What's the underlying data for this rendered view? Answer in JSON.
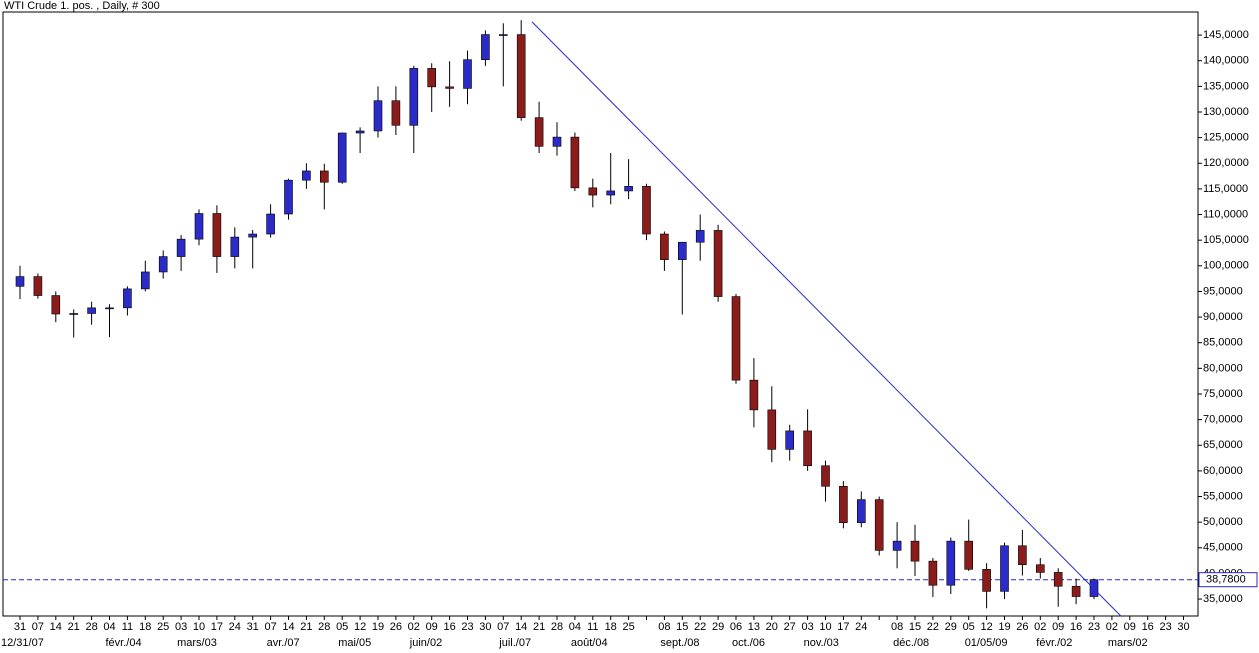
{
  "chart_data": {
    "type": "candlestick",
    "title": "WTI Crude 1. pos. , Daily, # 300",
    "categories": [
      "31",
      "07",
      "14",
      "21",
      "28",
      "04",
      "11",
      "18",
      "25",
      "03",
      "10",
      "17",
      "24",
      "31",
      "07",
      "14",
      "21",
      "28",
      "05",
      "12",
      "19",
      "26",
      "02",
      "09",
      "16",
      "23",
      "30",
      "07",
      "14",
      "21",
      "28",
      "04",
      "11",
      "18",
      "25",
      null,
      "08",
      "15",
      "22",
      "29",
      "06",
      "13",
      "20",
      "27",
      "03",
      "10",
      "17",
      "24",
      null,
      "08",
      "15",
      "22",
      "29",
      "05",
      "12",
      "19",
      "26",
      "02",
      "09",
      "16",
      "23",
      "02",
      "09",
      "16",
      "23",
      "30"
    ],
    "month_labels": [
      "12/31/07",
      null,
      null,
      null,
      null,
      "févr./04",
      null,
      null,
      null,
      "mars/03",
      null,
      null,
      null,
      null,
      "avr./07",
      null,
      null,
      null,
      "mai/05",
      null,
      null,
      null,
      "juin/02",
      null,
      null,
      null,
      null,
      "juil./07",
      null,
      null,
      null,
      "août/04",
      null,
      null,
      null,
      null,
      "sept./08",
      null,
      null,
      null,
      "oct./06",
      null,
      null,
      null,
      "nov./03",
      null,
      null,
      null,
      null,
      "déc./08",
      null,
      null,
      null,
      "01/05/09",
      null,
      null,
      null,
      "févr./02",
      null,
      null,
      null,
      "mars/02",
      null,
      null,
      null,
      null
    ],
    "open": [
      96,
      97.9,
      94.2,
      90.6,
      90.7,
      91.8,
      91.8,
      95.5,
      98.8,
      101.8,
      105.2,
      110.2,
      101.8,
      105.6,
      106.2,
      110.1,
      116.7,
      118.5,
      116.3,
      125.9,
      126.3,
      132.2,
      127.4,
      138.5,
      134.9,
      134.6,
      140.2,
      145.1,
      145.1,
      128.9,
      123.3,
      125.1,
      115.2,
      113.8,
      114.6,
      115.5,
      106.2,
      101.2,
      104.6,
      106.9,
      94,
      77.7,
      71.9,
      64.2,
      67.8,
      61,
      57,
      49.9,
      54.4,
      44.5,
      46.3,
      42.4,
      37.7,
      46.3,
      40.8,
      36.5,
      45.4,
      41.7,
      40.2,
      37.5,
      35.5,
      null,
      null,
      null,
      null,
      null
    ],
    "high": [
      100,
      98.5,
      95,
      91.5,
      93,
      92.5,
      96,
      101,
      103,
      106,
      111,
      111.8,
      107.5,
      107,
      112,
      117,
      120,
      119.9,
      126,
      127,
      135,
      135,
      139,
      139.5,
      139.9,
      142,
      145.9,
      147.3,
      147.9,
      132,
      128,
      126,
      117,
      122,
      120.8,
      116,
      106.7,
      104,
      110,
      108,
      94.5,
      82,
      76.5,
      69,
      72,
      62,
      58,
      56,
      55,
      50,
      49.5,
      43,
      47,
      50.5,
      42,
      46,
      48.5,
      43,
      41,
      39,
      39,
      null,
      null,
      null,
      null,
      null
    ],
    "low": [
      93.5,
      93.6,
      89,
      86,
      88.5,
      86.1,
      90.3,
      95,
      97.5,
      99,
      104,
      98.6,
      99.5,
      99.5,
      105.5,
      109,
      115,
      111,
      116,
      122,
      125,
      125.5,
      122,
      130,
      131,
      131.5,
      139,
      135,
      128.3,
      122,
      121.5,
      114.6,
      111.4,
      112,
      113,
      105,
      99,
      90.5,
      101,
      93,
      77,
      68.5,
      61.7,
      62,
      60,
      54,
      48.8,
      49,
      43.5,
      41,
      39.5,
      35.4,
      36,
      40.5,
      33.2,
      35,
      39.6,
      39,
      33.5,
      34,
      35,
      null,
      null,
      null,
      null,
      null
    ],
    "close": [
      97.9,
      94.2,
      90.6,
      90.7,
      91.8,
      91.8,
      95.5,
      98.8,
      101.8,
      105.2,
      110.2,
      101.8,
      105.6,
      106.2,
      110.1,
      116.7,
      118.5,
      116.3,
      125.9,
      126.3,
      132.2,
      127.4,
      138.5,
      134.9,
      134.6,
      140.2,
      145.1,
      145.1,
      128.9,
      123.3,
      125.1,
      115.2,
      113.8,
      114.6,
      115.5,
      106.2,
      101.2,
      104.6,
      106.9,
      94,
      77.7,
      71.9,
      64.2,
      67.8,
      61,
      57,
      49.9,
      54.4,
      44.5,
      46.3,
      42.4,
      37.7,
      46.3,
      40.8,
      36.5,
      45.4,
      41.7,
      40.2,
      37.5,
      35.5,
      38.78,
      null,
      null,
      null,
      null,
      null
    ],
    "up_color": "#2b2bc8",
    "down_color": "#8b1c1c",
    "ylim": [
      31.7,
      149.5
    ],
    "yticks": [
      {
        "value": 35,
        "label": "35,0000"
      },
      {
        "value": 40,
        "label": "40,0000"
      },
      {
        "value": 45,
        "label": "45,0000"
      },
      {
        "value": 50,
        "label": "50,0000"
      },
      {
        "value": 55,
        "label": "55,0000"
      },
      {
        "value": 60,
        "label": "60,0000"
      },
      {
        "value": 65,
        "label": "65,0000"
      },
      {
        "value": 70,
        "label": "70,0000"
      },
      {
        "value": 75,
        "label": "75,0000"
      },
      {
        "value": 80,
        "label": "80,0000"
      },
      {
        "value": 85,
        "label": "85,0000"
      },
      {
        "value": 90,
        "label": "90,0000"
      },
      {
        "value": 95,
        "label": "95,0000"
      },
      {
        "value": 100,
        "label": "100,0000"
      },
      {
        "value": 105,
        "label": "105,0000"
      },
      {
        "value": 110,
        "label": "110,0000"
      },
      {
        "value": 115,
        "label": "115,0000"
      },
      {
        "value": 120,
        "label": "120,0000"
      },
      {
        "value": 125,
        "label": "125,0000"
      },
      {
        "value": 130,
        "label": "130,0000"
      },
      {
        "value": 135,
        "label": "135,0000"
      },
      {
        "value": 140,
        "label": "140,0000"
      },
      {
        "value": 145,
        "label": "145,0000"
      }
    ],
    "last_price": {
      "value": 38.78,
      "label": "38,7800",
      "color": "#2b2bc8"
    },
    "trendline": {
      "x": [
        28.6,
        61.5
      ],
      "y": [
        147.6,
        31.7
      ],
      "color": "#2b2bc8"
    }
  }
}
